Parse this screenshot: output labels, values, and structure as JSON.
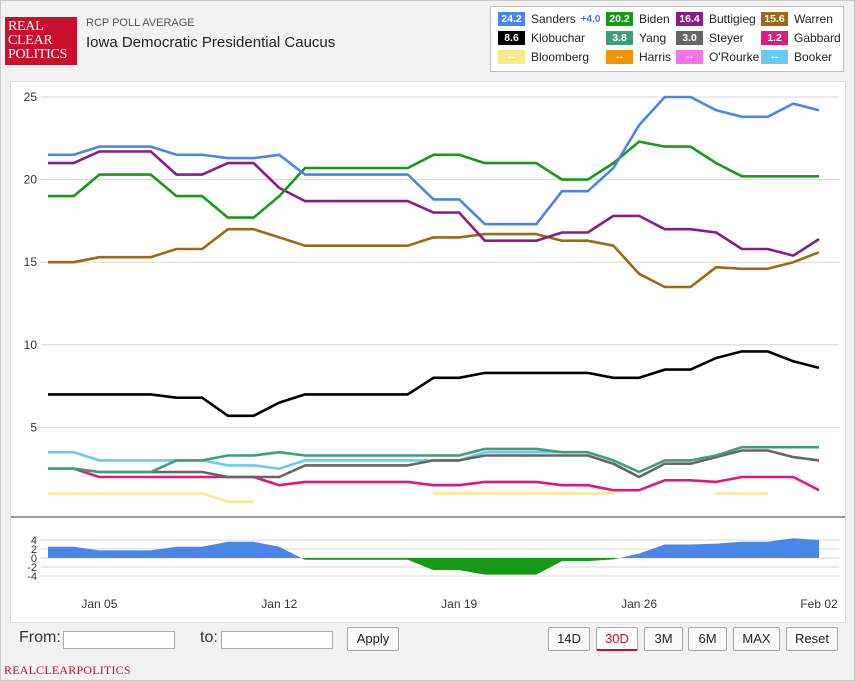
{
  "header": {
    "logo_lines": [
      "REAL",
      "CLEAR",
      "POLITICS"
    ],
    "subtitle": "RCP POLL AVERAGE",
    "title": "Iowa Democratic Presidential Caucus"
  },
  "legend": [
    {
      "name": "Sanders",
      "value": "24.2",
      "color": "#4a86e8",
      "change": "+4.0"
    },
    {
      "name": "Biden",
      "value": "20.2",
      "color": "#179a17"
    },
    {
      "name": "Buttigieg",
      "value": "16.4",
      "color": "#8b1a8b"
    },
    {
      "name": "Warren",
      "value": "15.6",
      "color": "#9c6a13"
    },
    {
      "name": "Klobuchar",
      "value": "8.6",
      "color": "#000000"
    },
    {
      "name": "Yang",
      "value": "3.8",
      "color": "#3e9e7c"
    },
    {
      "name": "Steyer",
      "value": "3.0",
      "color": "#666666"
    },
    {
      "name": "Gabbard",
      "value": "1.2",
      "color": "#e0197d"
    },
    {
      "name": "Bloomberg",
      "value": "--",
      "color": "#f8e98a"
    },
    {
      "name": "Harris",
      "value": "--",
      "color": "#f0930a"
    },
    {
      "name": "O'Rourke",
      "value": "--",
      "color": "#f474e8"
    },
    {
      "name": "Booker",
      "value": "--",
      "color": "#67cbf3"
    }
  ],
  "chart_data": {
    "type": "line",
    "x": [
      "Jan 03",
      "Jan 04",
      "Jan 05",
      "Jan 06",
      "Jan 07",
      "Jan 08",
      "Jan 09",
      "Jan 10",
      "Jan 11",
      "Jan 12",
      "Jan 13",
      "Jan 14",
      "Jan 15",
      "Jan 16",
      "Jan 17",
      "Jan 18",
      "Jan 19",
      "Jan 20",
      "Jan 21",
      "Jan 22",
      "Jan 23",
      "Jan 24",
      "Jan 25",
      "Jan 26",
      "Jan 27",
      "Jan 28",
      "Jan 29",
      "Jan 30",
      "Jan 31",
      "Feb 01",
      "Feb 02"
    ],
    "x_tick_labels": [
      "Jan 05",
      "Jan 12",
      "Jan 19",
      "Jan 26",
      "Feb 02"
    ],
    "ylim": [
      0,
      26
    ],
    "y_ticks": [
      5,
      10,
      15,
      20,
      25
    ],
    "series": [
      {
        "name": "Sanders",
        "color": "#4a86e8",
        "values": [
          21.5,
          21.5,
          22,
          22,
          22,
          21.5,
          21.5,
          21.3,
          21.3,
          21.5,
          20.3,
          20.3,
          20.3,
          20.3,
          20.3,
          18.8,
          18.8,
          17.3,
          17.3,
          17.3,
          19.3,
          19.3,
          20.7,
          23.3,
          25,
          25,
          24.2,
          23.8,
          23.8,
          24.6,
          24.2
        ]
      },
      {
        "name": "Biden",
        "color": "#179a17",
        "values": [
          19,
          19,
          20.3,
          20.3,
          20.3,
          19,
          19,
          17.7,
          17.7,
          19,
          20.7,
          20.7,
          20.7,
          20.7,
          20.7,
          21.5,
          21.5,
          21,
          21,
          21,
          20,
          20,
          21,
          22.3,
          22,
          22,
          21,
          20.2,
          20.2,
          20.2,
          20.2
        ]
      },
      {
        "name": "Buttigieg",
        "color": "#8b1a8b",
        "values": [
          21,
          21,
          21.7,
          21.7,
          21.7,
          20.3,
          20.3,
          21,
          21,
          19.5,
          18.7,
          18.7,
          18.7,
          18.7,
          18.7,
          18,
          18,
          16.3,
          16.3,
          16.3,
          16.8,
          16.8,
          17.8,
          17.8,
          17,
          17,
          16.8,
          15.8,
          15.8,
          15.4,
          16.4
        ]
      },
      {
        "name": "Warren",
        "color": "#9c6a13",
        "values": [
          15,
          15,
          15.3,
          15.3,
          15.3,
          15.8,
          15.8,
          17,
          17,
          16.5,
          16,
          16,
          16,
          16,
          16,
          16.5,
          16.5,
          16.7,
          16.7,
          16.7,
          16.3,
          16.3,
          16,
          14.3,
          13.5,
          13.5,
          14.7,
          14.6,
          14.6,
          15,
          15.6
        ]
      },
      {
        "name": "Klobuchar",
        "color": "#000000",
        "values": [
          7,
          7,
          7,
          7,
          7,
          6.8,
          6.8,
          5.7,
          5.7,
          6.5,
          7,
          7,
          7,
          7,
          7,
          8,
          8,
          8.3,
          8.3,
          8.3,
          8.3,
          8.3,
          8,
          8,
          8.5,
          8.5,
          9.2,
          9.6,
          9.6,
          9,
          8.6
        ]
      },
      {
        "name": "Yang",
        "color": "#3e9e7c",
        "values": [
          2.5,
          2.5,
          2.3,
          2.3,
          2.3,
          3,
          3,
          3.3,
          3.3,
          3.5,
          3.3,
          3.3,
          3.3,
          3.3,
          3.3,
          3.3,
          3.3,
          3.7,
          3.7,
          3.7,
          3.5,
          3.5,
          3,
          2.3,
          3,
          3,
          3.3,
          3.8,
          3.8,
          3.8,
          3.8
        ]
      },
      {
        "name": "Steyer",
        "color": "#666666",
        "values": [
          2.5,
          2.5,
          2.3,
          2.3,
          2.3,
          2.3,
          2.3,
          2,
          2,
          2,
          2.7,
          2.7,
          2.7,
          2.7,
          2.7,
          3,
          3,
          3.3,
          3.3,
          3.3,
          3.3,
          3.3,
          2.8,
          2,
          2.8,
          2.8,
          3.2,
          3.6,
          3.6,
          3.2,
          3
        ]
      },
      {
        "name": "Gabbard",
        "color": "#e0197d",
        "values": [
          2.5,
          2.5,
          2,
          2,
          2,
          2,
          2,
          2,
          2,
          1.5,
          1.7,
          1.7,
          1.7,
          1.7,
          1.7,
          1.5,
          1.5,
          1.7,
          1.7,
          1.7,
          1.5,
          1.5,
          1.2,
          1.2,
          1.8,
          1.8,
          1.7,
          2,
          2,
          2,
          1.2
        ]
      },
      {
        "name": "Bloomberg",
        "color": "#f8e98a",
        "values": [
          1,
          1,
          1,
          1,
          1,
          1,
          1,
          0.5,
          0.5,
          null,
          null,
          null,
          null,
          null,
          null,
          1,
          1,
          1,
          1,
          1,
          1,
          1,
          1,
          null,
          null,
          null,
          1,
          1,
          1,
          null,
          null
        ]
      },
      {
        "name": "Booker",
        "color": "#67cbf3",
        "values": [
          3.5,
          3.5,
          3,
          3,
          3,
          3,
          3,
          2.7,
          2.7,
          2.5,
          3,
          3,
          3,
          3,
          3,
          3,
          3,
          3.5,
          3.5,
          3.5,
          3.5,
          3.5,
          null,
          null,
          null,
          null,
          null,
          null,
          null,
          null,
          null
        ]
      }
    ],
    "spread": {
      "name": "Sanders - Biden spread",
      "ylim": [
        -5,
        5
      ],
      "y_ticks": [
        4,
        2,
        0,
        -2,
        -4
      ],
      "positive_color": "#4a86e8",
      "negative_color": "#179a17"
    }
  },
  "controls": {
    "from_label": "From:",
    "to_label": "to:",
    "apply": "Apply",
    "ranges": [
      "14D",
      "30D",
      "3M",
      "6M",
      "MAX"
    ],
    "active_range": "30D",
    "reset": "Reset"
  },
  "footer": "REALCLEARPOLITICS"
}
